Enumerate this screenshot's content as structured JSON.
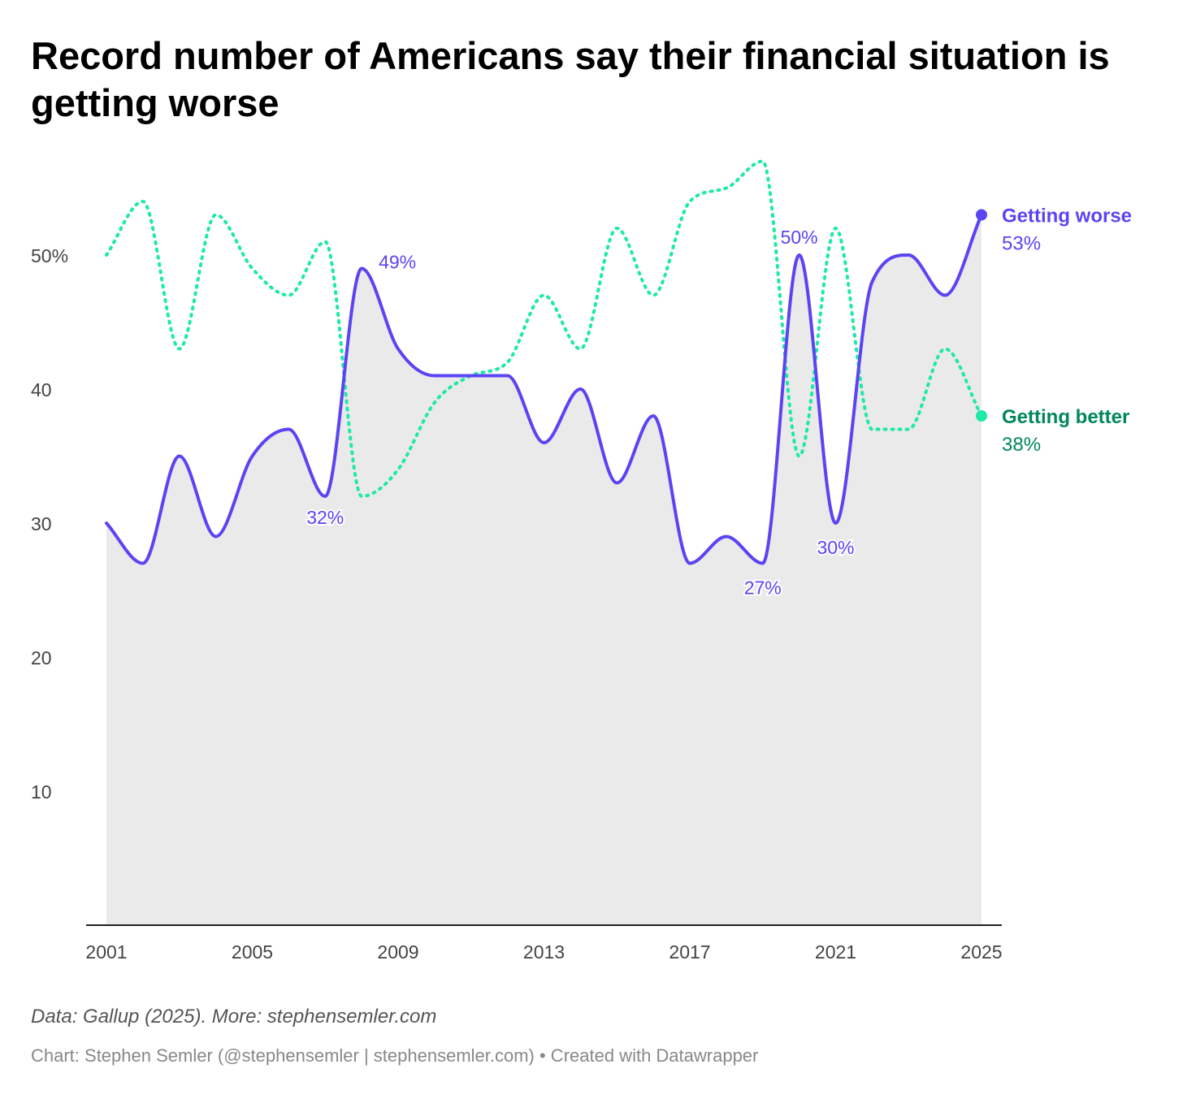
{
  "title": "Record number of Americans say their financial situation is getting worse",
  "source": "Data: Gallup (2025). More: stephensemler.com",
  "credit": "Chart: Stephen Semler (@stephensemler | stephensemler.com) • Created with Datawrapper",
  "chart_data": {
    "type": "line",
    "x": [
      2001,
      2002,
      2003,
      2004,
      2005,
      2006,
      2007,
      2008,
      2009,
      2010,
      2011,
      2012,
      2013,
      2014,
      2015,
      2016,
      2017,
      2018,
      2019,
      2020,
      2021,
      2022,
      2023,
      2024,
      2025
    ],
    "series": [
      {
        "name": "Getting worse",
        "color": "#5b44f2",
        "area": true,
        "dotted": false,
        "end_label": "53%",
        "values": [
          30,
          27,
          35,
          29,
          35,
          37,
          32,
          49,
          43,
          41,
          41,
          41,
          36,
          40,
          33,
          38,
          27,
          29,
          27,
          50,
          30,
          48,
          50,
          47,
          53
        ]
      },
      {
        "name": "Getting better",
        "color": "#1de9a8",
        "label_color": "#00875a",
        "area": false,
        "dotted": true,
        "end_label": "38%",
        "values": [
          50,
          54,
          43,
          53,
          49,
          47,
          51,
          32,
          34,
          39,
          41,
          42,
          47,
          43,
          52,
          47,
          54,
          55,
          57,
          35,
          52,
          37,
          37,
          43,
          38
        ]
      }
    ],
    "annotations": [
      {
        "x": 2007,
        "y": 32,
        "text": "32%"
      },
      {
        "x": 2008,
        "y": 49,
        "text": "49%"
      },
      {
        "x": 2019,
        "y": 27,
        "text": "27%"
      },
      {
        "x": 2020,
        "y": 50,
        "text": "50%"
      },
      {
        "x": 2021,
        "y": 30,
        "text": "30%"
      }
    ],
    "yticks": [
      10,
      20,
      30,
      40,
      50
    ],
    "ytick_labels": [
      "10",
      "20",
      "30",
      "40",
      "50%"
    ],
    "xticks": [
      2001,
      2005,
      2009,
      2013,
      2017,
      2021,
      2025
    ],
    "xtick_labels": [
      "2001",
      "2005",
      "2009",
      "2013",
      "2017",
      "2021",
      "2025"
    ],
    "ylim": [
      0,
      57
    ],
    "xlim": [
      2001,
      2025
    ],
    "grid": false,
    "legend": "direct labels right"
  }
}
